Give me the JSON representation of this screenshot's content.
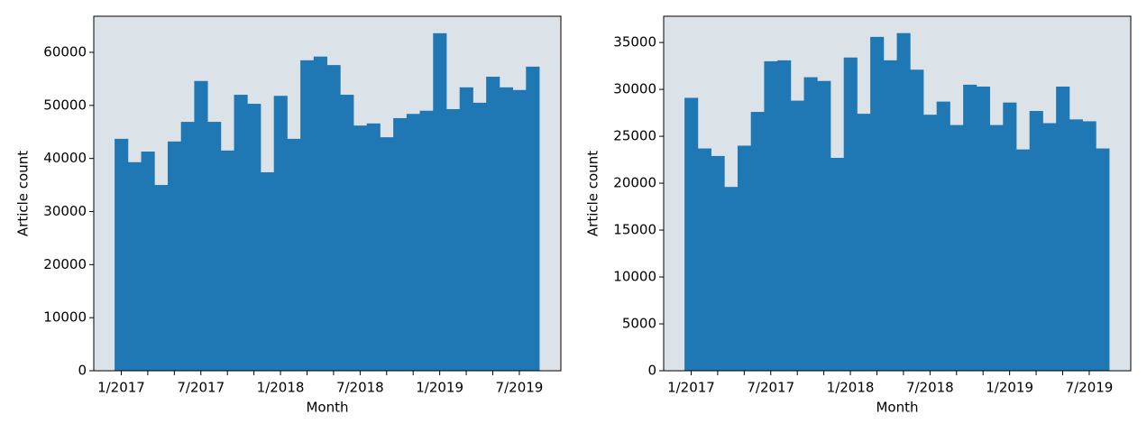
{
  "chart_data": [
    {
      "type": "bar",
      "xlabel": "Month",
      "ylabel": "Article count",
      "color": "#1f77b4",
      "background": "#dbe3e8",
      "categories": [
        "1/2017",
        null,
        null,
        null,
        null,
        null,
        "7/2017",
        null,
        null,
        null,
        null,
        null,
        "1/2018",
        null,
        null,
        null,
        null,
        null,
        "7/2018",
        null,
        null,
        null,
        null,
        null,
        "1/2019",
        null,
        null,
        null,
        null,
        null,
        "7/2019",
        null
      ],
      "values": [
        43700,
        39300,
        41300,
        35000,
        43200,
        46900,
        54600,
        46900,
        41500,
        52000,
        50300,
        37400,
        51800,
        43700,
        58500,
        59200,
        57600,
        52000,
        46200,
        46600,
        44000,
        47600,
        48400,
        49000,
        63600,
        49300,
        53400,
        50500,
        55400,
        53400,
        52900,
        57300
      ],
      "ylim": [
        0,
        66800
      ],
      "yticks": [
        0,
        10000,
        20000,
        30000,
        40000,
        50000,
        60000
      ]
    },
    {
      "type": "bar",
      "xlabel": "Month",
      "ylabel": "Article count",
      "color": "#1f77b4",
      "background": "#dbe3e8",
      "categories": [
        "1/2017",
        null,
        null,
        null,
        null,
        null,
        "7/2017",
        null,
        null,
        null,
        null,
        null,
        "1/2018",
        null,
        null,
        null,
        null,
        null,
        "7/2018",
        null,
        null,
        null,
        null,
        null,
        "1/2019",
        null,
        null,
        null,
        null,
        null,
        "7/2019",
        null
      ],
      "values": [
        29100,
        23700,
        22900,
        19600,
        24000,
        27600,
        33000,
        33100,
        28800,
        31300,
        30900,
        22700,
        33400,
        27400,
        35600,
        33100,
        36000,
        32100,
        27300,
        28700,
        26200,
        30500,
        30300,
        26200,
        28600,
        23600,
        27700,
        26400,
        30300,
        26800,
        26600,
        23700
      ],
      "ylim": [
        0,
        37800
      ],
      "yticks": [
        0,
        5000,
        10000,
        15000,
        20000,
        25000,
        30000,
        35000
      ]
    }
  ]
}
